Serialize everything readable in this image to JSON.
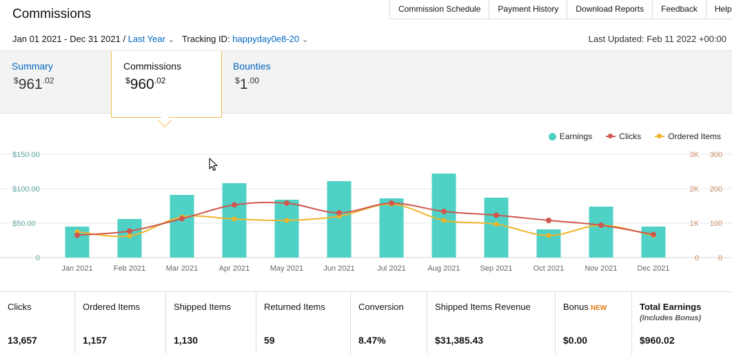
{
  "header": {
    "title": "Commissions",
    "links": [
      "Commission Schedule",
      "Payment History",
      "Download Reports",
      "Feedback",
      "Help"
    ]
  },
  "filters": {
    "date_range": "Jan 01 2021 - Dec 31 2021 /",
    "period": "Last Year",
    "tracking_label": "Tracking ID:",
    "tracking_id": "happyday0e8-20",
    "last_updated": "Last Updated: Feb 11 2022 +00:00"
  },
  "tabs": [
    {
      "label": "Summary",
      "dollar": "$",
      "whole": "961",
      "cents": ".02"
    },
    {
      "label": "Commissions",
      "dollar": "$",
      "whole": "960",
      "cents": ".02"
    },
    {
      "label": "Bounties",
      "dollar": "$",
      "whole": "1",
      "cents": ".00"
    }
  ],
  "legend": [
    {
      "label": "Earnings",
      "color": "#4fd1c5"
    },
    {
      "label": "Clicks",
      "color": "#d0574f"
    },
    {
      "label": "Ordered Items",
      "color": "#f0b429"
    }
  ],
  "chart_data": {
    "type": "bar",
    "categories": [
      "Jan 2021",
      "Feb 2021",
      "Mar 2021",
      "Apr 2021",
      "May 2021",
      "Jun 2021",
      "Jul 2021",
      "Aug 2021",
      "Sep 2021",
      "Oct 2021",
      "Nov 2021",
      "Dec 2021"
    ],
    "series": [
      {
        "name": "Earnings",
        "type": "bar",
        "axis": "left",
        "values": [
          45,
          56,
          91,
          108,
          84,
          111,
          86,
          122,
          87,
          41,
          74,
          45
        ]
      },
      {
        "name": "Clicks",
        "type": "line",
        "axis": "right",
        "values": [
          650,
          770,
          1130,
          1530,
          1580,
          1300,
          1580,
          1340,
          1230,
          1080,
          940,
          670
        ]
      },
      {
        "name": "Ordered Items",
        "type": "line",
        "axis": "right",
        "values": [
          75,
          63,
          118,
          112,
          108,
          120,
          155,
          108,
          97,
          64,
          94,
          64
        ]
      }
    ],
    "y_left": {
      "ticks": [
        "0",
        "$50.00",
        "$100.00",
        "$150.00"
      ],
      "range": [
        0,
        150
      ]
    },
    "y_right_clicks": {
      "ticks": [
        "0",
        "1K",
        "2K",
        "3K"
      ],
      "range": [
        0,
        3000
      ]
    },
    "y_right_items": {
      "ticks": [
        "0",
        "100",
        "200",
        "300"
      ],
      "range": [
        0,
        300
      ]
    },
    "grid": true,
    "legend_position": "top-right"
  },
  "stats": [
    {
      "label": "Clicks",
      "value": "13,657"
    },
    {
      "label": "Ordered Items",
      "value": "1,157"
    },
    {
      "label": "Shipped Items",
      "value": "1,130"
    },
    {
      "label": "Returned Items",
      "value": "59"
    },
    {
      "label": "Conversion",
      "value": "8.47%"
    },
    {
      "label": "Shipped Items Revenue",
      "value": "$31,385.43"
    },
    {
      "label": "Bonus",
      "badge": "NEW",
      "value": "$0.00"
    },
    {
      "label": "Total Earnings",
      "sub": "(Includes Bonus)",
      "value": "$960.02"
    }
  ]
}
